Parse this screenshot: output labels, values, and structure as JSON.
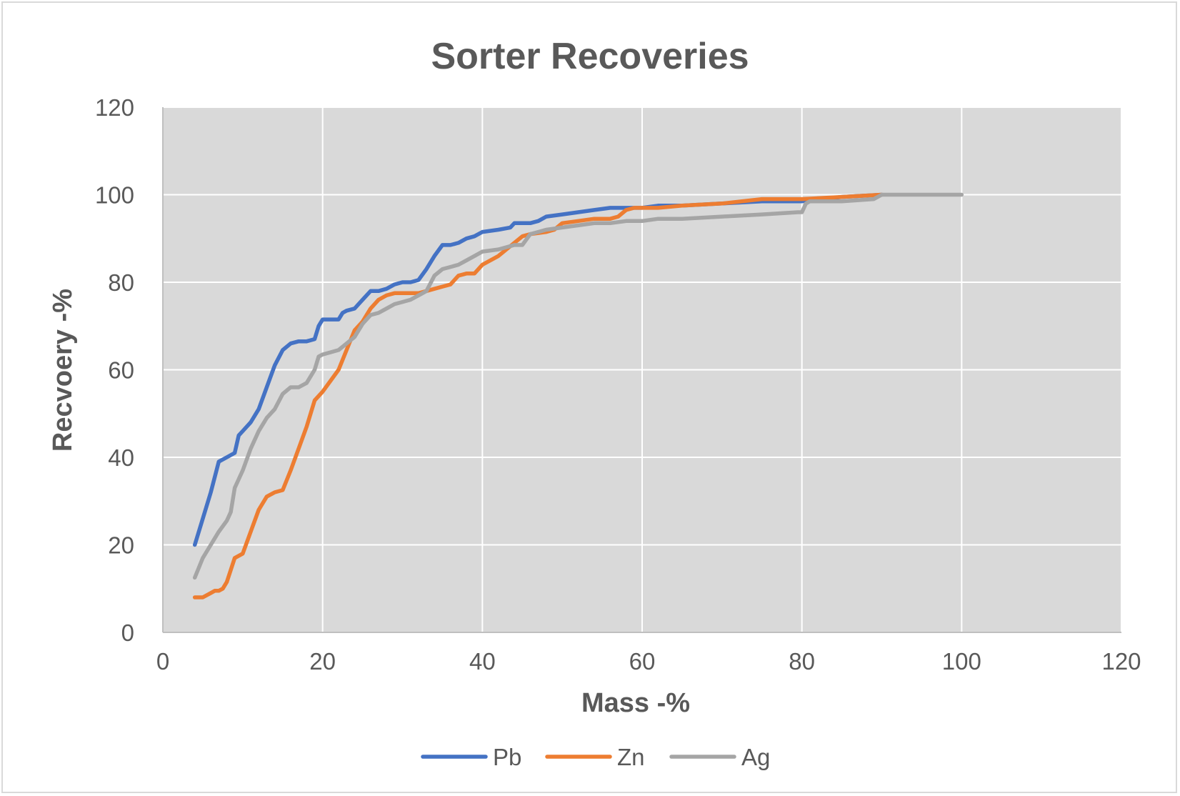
{
  "chart_data": {
    "type": "line",
    "title": "Sorter Recoveries",
    "xlabel": "Mass -%",
    "ylabel": "Recvoery -%",
    "xlim": [
      0,
      120
    ],
    "ylim": [
      0,
      120
    ],
    "xticks": [
      0,
      20,
      40,
      60,
      80,
      100,
      120
    ],
    "yticks": [
      0,
      20,
      40,
      60,
      80,
      100,
      120
    ],
    "grid": true,
    "legend_position": "bottom",
    "plot_background": "#d9d9d9",
    "series": [
      {
        "name": "Pb",
        "color": "#4472c4",
        "x": [
          4,
          5,
          6,
          7,
          8,
          9,
          9.5,
          10,
          11,
          12,
          13,
          14,
          15,
          16,
          17,
          18,
          19,
          19.5,
          20,
          21,
          22,
          22.5,
          23,
          24,
          25,
          26,
          27,
          28,
          29,
          30,
          31,
          32,
          33,
          34,
          35,
          36,
          37,
          38,
          39,
          40,
          42,
          43.5,
          44,
          46,
          47,
          48,
          50,
          52,
          54,
          56,
          58,
          60,
          62,
          65,
          70,
          75,
          80,
          85,
          90
        ],
        "y": [
          20,
          26,
          32,
          39,
          40,
          41,
          45,
          46,
          48,
          51,
          56,
          61,
          64.5,
          66,
          66.5,
          66.5,
          67,
          70,
          71.5,
          71.5,
          71.5,
          73,
          73.5,
          74,
          76,
          78,
          78,
          78.5,
          79.5,
          80,
          80,
          80.5,
          83,
          86,
          88.5,
          88.5,
          89,
          90,
          90.5,
          91.5,
          92,
          92.5,
          93.5,
          93.5,
          94,
          95,
          95.5,
          96,
          96.5,
          97,
          97,
          97,
          97.5,
          97.5,
          98,
          98.5,
          98.5,
          99.5,
          100
        ]
      },
      {
        "name": "Zn",
        "color": "#ed7d31",
        "x": [
          4,
          5,
          6,
          6.5,
          7,
          7.5,
          8,
          9,
          10,
          11,
          12,
          13,
          14,
          15,
          16,
          17,
          18,
          19,
          20,
          21,
          22,
          23,
          24,
          25,
          26,
          27,
          28,
          29,
          30,
          31,
          32,
          33,
          34,
          35,
          36,
          37,
          38,
          39,
          40,
          42,
          44,
          45,
          46,
          48,
          49,
          50,
          52,
          54,
          56,
          57,
          58,
          59,
          60,
          62,
          65,
          70,
          75,
          80,
          85,
          90
        ],
        "y": [
          8,
          8,
          9,
          9.5,
          9.5,
          10,
          11.5,
          17,
          18,
          23,
          28,
          31,
          32,
          32.5,
          37,
          42,
          47,
          53,
          55,
          57.5,
          60,
          64.5,
          69,
          71,
          74,
          76,
          77,
          77.5,
          77.5,
          77.5,
          77.5,
          78,
          78.5,
          79,
          79.5,
          81.5,
          82,
          82,
          84,
          86,
          89,
          90.5,
          91,
          91.5,
          92,
          93.5,
          94,
          94.5,
          94.5,
          95,
          96.5,
          97,
          97,
          97,
          97.5,
          98,
          99,
          99,
          99.5,
          100
        ]
      },
      {
        "name": "Ag",
        "color": "#a5a5a5",
        "x": [
          4,
          5,
          6,
          7,
          8,
          8.5,
          9,
          10,
          11,
          12,
          13,
          14,
          15,
          16,
          17,
          18,
          19,
          19.5,
          20,
          21,
          22,
          23,
          24,
          25,
          26,
          27,
          28,
          29,
          30,
          31,
          32,
          33,
          34,
          35,
          36,
          37,
          38,
          39,
          40,
          42,
          43,
          44,
          45,
          46,
          47,
          48,
          50,
          52,
          54,
          56,
          58,
          60,
          62,
          65,
          70,
          75,
          79.5,
          80,
          80.5,
          81,
          82,
          85,
          89,
          90,
          100
        ],
        "y": [
          12.5,
          17,
          20,
          23,
          25.5,
          27.5,
          33,
          37,
          42,
          46,
          49,
          51,
          54.5,
          56,
          56,
          57,
          60,
          63,
          63.5,
          64,
          64.5,
          66,
          67.5,
          70.5,
          72.5,
          73,
          74,
          75,
          75.5,
          76,
          77,
          78,
          81.5,
          83,
          83.5,
          84,
          85,
          86,
          87,
          87.5,
          88,
          88.5,
          88.5,
          91,
          91.5,
          92,
          92.5,
          93,
          93.5,
          93.5,
          94,
          94,
          94.5,
          94.5,
          95,
          95.5,
          96,
          96,
          98,
          98.5,
          98.5,
          98.5,
          99,
          100,
          100
        ]
      }
    ]
  }
}
